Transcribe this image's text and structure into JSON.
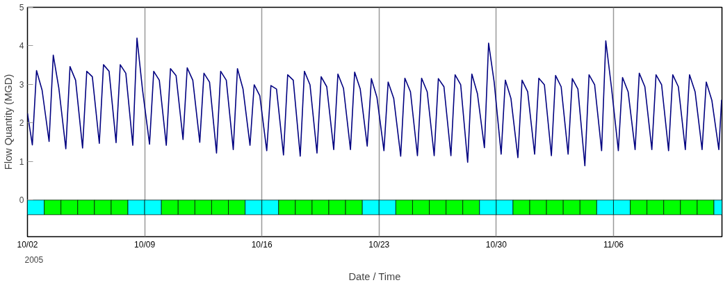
{
  "chart_data": {
    "type": "line",
    "xlabel": "Date / Time",
    "ylabel": "Flow Quantity (MGD)",
    "annotations": [
      "2005"
    ],
    "xlim": [
      "2005-10-02T00:00",
      "2005-11-12T11:30"
    ],
    "ylim": [
      -0.95,
      5
    ],
    "yticks": [
      0,
      1,
      2,
      3,
      4,
      5
    ],
    "xticks": [
      {
        "value": "2005-10-02",
        "label": "10/02"
      },
      {
        "value": "2005-10-09",
        "label": "10/09"
      },
      {
        "value": "2005-10-16",
        "label": "10/16"
      },
      {
        "value": "2005-10-23",
        "label": "10/23"
      },
      {
        "value": "2005-10-30",
        "label": "10/30"
      },
      {
        "value": "2005-11-06",
        "label": "11/06"
      }
    ],
    "grid": "x",
    "line_style": "solid",
    "marker": "none",
    "series": [
      {
        "color": "#000080",
        "x": [
          "2005-10-02T00:00",
          "2005-10-02T07:00",
          "2005-10-02T13:00",
          "2005-10-02T21:00",
          "2005-10-03T07:00",
          "2005-10-03T13:00",
          "2005-10-03T21:00",
          "2005-10-04T07:00",
          "2005-10-04T13:00",
          "2005-10-04T21:00",
          "2005-10-05T07:00",
          "2005-10-05T13:00",
          "2005-10-05T21:00",
          "2005-10-06T07:00",
          "2005-10-06T13:00",
          "2005-10-06T21:00",
          "2005-10-07T07:00",
          "2005-10-07T13:00",
          "2005-10-07T21:00",
          "2005-10-08T07:00",
          "2005-10-08T13:00",
          "2005-10-08T21:00",
          "2005-10-09T07:00",
          "2005-10-09T13:00",
          "2005-10-09T21:00",
          "2005-10-10T07:00",
          "2005-10-10T13:00",
          "2005-10-10T21:00",
          "2005-10-11T07:00",
          "2005-10-11T13:00",
          "2005-10-11T21:00",
          "2005-10-12T07:00",
          "2005-10-12T13:00",
          "2005-10-12T21:00",
          "2005-10-13T07:00",
          "2005-10-13T13:00",
          "2005-10-13T21:00",
          "2005-10-14T07:00",
          "2005-10-14T13:00",
          "2005-10-14T21:00",
          "2005-10-15T07:00",
          "2005-10-15T13:00",
          "2005-10-15T21:00",
          "2005-10-16T07:00",
          "2005-10-16T13:00",
          "2005-10-16T21:00",
          "2005-10-17T07:00",
          "2005-10-17T13:00",
          "2005-10-17T21:00",
          "2005-10-18T07:00",
          "2005-10-18T13:00",
          "2005-10-18T21:00",
          "2005-10-19T07:00",
          "2005-10-19T13:00",
          "2005-10-19T21:00",
          "2005-10-20T07:00",
          "2005-10-20T13:00",
          "2005-10-20T21:00",
          "2005-10-21T07:00",
          "2005-10-21T13:00",
          "2005-10-21T21:00",
          "2005-10-22T07:00",
          "2005-10-22T13:00",
          "2005-10-22T21:00",
          "2005-10-23T07:00",
          "2005-10-23T13:00",
          "2005-10-23T21:00",
          "2005-10-24T07:00",
          "2005-10-24T13:00",
          "2005-10-24T21:00",
          "2005-10-25T07:00",
          "2005-10-25T13:00",
          "2005-10-25T21:00",
          "2005-10-26T07:00",
          "2005-10-26T13:00",
          "2005-10-26T21:00",
          "2005-10-27T07:00",
          "2005-10-27T13:00",
          "2005-10-27T21:00",
          "2005-10-28T07:00",
          "2005-10-28T13:00",
          "2005-10-28T21:00",
          "2005-10-29T07:00",
          "2005-10-29T13:00",
          "2005-10-29T21:00",
          "2005-10-30T07:00",
          "2005-10-30T13:00",
          "2005-10-30T21:00",
          "2005-10-31T07:00",
          "2005-10-31T13:00",
          "2005-10-31T21:00",
          "2005-11-01T07:00",
          "2005-11-01T13:00",
          "2005-11-01T21:00",
          "2005-11-02T07:00",
          "2005-11-02T13:00",
          "2005-11-02T21:00",
          "2005-11-03T07:00",
          "2005-11-03T13:00",
          "2005-11-03T21:00",
          "2005-11-04T07:00",
          "2005-11-04T13:00",
          "2005-11-04T21:00",
          "2005-11-05T07:00",
          "2005-11-05T13:00",
          "2005-11-05T21:00",
          "2005-11-06T07:00",
          "2005-11-06T13:00",
          "2005-11-06T21:00",
          "2005-11-07T07:00",
          "2005-11-07T13:00",
          "2005-11-07T21:00",
          "2005-11-08T07:00",
          "2005-11-08T13:00",
          "2005-11-08T21:00",
          "2005-11-09T07:00",
          "2005-11-09T13:00",
          "2005-11-09T21:00",
          "2005-11-10T07:00",
          "2005-11-10T13:00",
          "2005-11-10T21:00",
          "2005-11-11T07:00",
          "2005-11-11T13:00",
          "2005-11-11T21:00",
          "2005-11-12T07:00",
          "2005-11-12T11:00"
        ],
        "values": [
          2.25,
          1.43,
          3.36,
          2.85,
          1.52,
          3.76,
          2.9,
          1.33,
          3.46,
          3.11,
          1.35,
          3.34,
          3.2,
          1.47,
          3.51,
          3.34,
          1.49,
          3.51,
          3.29,
          1.42,
          4.2,
          2.85,
          1.45,
          3.34,
          3.11,
          1.42,
          3.41,
          3.23,
          1.57,
          3.43,
          3.11,
          1.5,
          3.29,
          3.06,
          1.22,
          3.34,
          3.11,
          1.31,
          3.41,
          2.88,
          1.42,
          2.99,
          2.71,
          1.28,
          2.97,
          2.88,
          1.17,
          3.25,
          3.11,
          1.14,
          3.34,
          2.99,
          1.22,
          3.2,
          2.94,
          1.31,
          3.27,
          2.9,
          1.31,
          3.32,
          2.88,
          1.4,
          3.15,
          2.66,
          1.28,
          3.06,
          2.64,
          1.14,
          3.16,
          2.81,
          1.15,
          3.16,
          2.81,
          1.15,
          3.15,
          2.94,
          1.15,
          3.25,
          2.99,
          0.98,
          3.27,
          2.76,
          1.36,
          4.07,
          3.06,
          1.19,
          3.11,
          2.64,
          1.1,
          3.11,
          2.81,
          1.19,
          3.16,
          2.99,
          1.15,
          3.23,
          2.94,
          1.19,
          3.15,
          2.88,
          0.89,
          3.25,
          2.99,
          1.28,
          4.13,
          2.94,
          1.28,
          3.18,
          2.81,
          1.31,
          3.29,
          2.94,
          1.31,
          3.25,
          2.99,
          1.28,
          3.25,
          2.94,
          1.31,
          3.25,
          2.81,
          1.31,
          3.06,
          2.59,
          1.31,
          2.6
        ]
      }
    ],
    "bands": [
      {
        "axis": "x",
        "from": "2005-10-02",
        "to": "2005-10-03",
        "color": "#00ffff"
      },
      {
        "axis": "x",
        "from": "2005-10-03",
        "to": "2005-10-04",
        "color": "#00ff00"
      },
      {
        "axis": "x",
        "from": "2005-10-04",
        "to": "2005-10-05",
        "color": "#00ff00"
      },
      {
        "axis": "x",
        "from": "2005-10-05",
        "to": "2005-10-06",
        "color": "#00ff00"
      },
      {
        "axis": "x",
        "from": "2005-10-06",
        "to": "2005-10-07",
        "color": "#00ff00"
      },
      {
        "axis": "x",
        "from": "2005-10-07",
        "to": "2005-10-08",
        "color": "#00ff00"
      },
      {
        "axis": "x",
        "from": "2005-10-08",
        "to": "2005-10-09",
        "color": "#00ffff"
      },
      {
        "axis": "x",
        "from": "2005-10-09",
        "to": "2005-10-10",
        "color": "#00ffff"
      },
      {
        "axis": "x",
        "from": "2005-10-10",
        "to": "2005-10-11",
        "color": "#00ff00"
      },
      {
        "axis": "x",
        "from": "2005-10-11",
        "to": "2005-10-12",
        "color": "#00ff00"
      },
      {
        "axis": "x",
        "from": "2005-10-12",
        "to": "2005-10-13",
        "color": "#00ff00"
      },
      {
        "axis": "x",
        "from": "2005-10-13",
        "to": "2005-10-14",
        "color": "#00ff00"
      },
      {
        "axis": "x",
        "from": "2005-10-14",
        "to": "2005-10-15",
        "color": "#00ff00"
      },
      {
        "axis": "x",
        "from": "2005-10-15",
        "to": "2005-10-16",
        "color": "#00ffff"
      },
      {
        "axis": "x",
        "from": "2005-10-16",
        "to": "2005-10-17",
        "color": "#00ffff"
      },
      {
        "axis": "x",
        "from": "2005-10-17",
        "to": "2005-10-18",
        "color": "#00ff00"
      },
      {
        "axis": "x",
        "from": "2005-10-18",
        "to": "2005-10-19",
        "color": "#00ff00"
      },
      {
        "axis": "x",
        "from": "2005-10-19",
        "to": "2005-10-20",
        "color": "#00ff00"
      },
      {
        "axis": "x",
        "from": "2005-10-20",
        "to": "2005-10-21",
        "color": "#00ff00"
      },
      {
        "axis": "x",
        "from": "2005-10-21",
        "to": "2005-10-22",
        "color": "#00ff00"
      },
      {
        "axis": "x",
        "from": "2005-10-22",
        "to": "2005-10-23",
        "color": "#00ffff"
      },
      {
        "axis": "x",
        "from": "2005-10-23",
        "to": "2005-10-24",
        "color": "#00ffff"
      },
      {
        "axis": "x",
        "from": "2005-10-24",
        "to": "2005-10-25",
        "color": "#00ff00"
      },
      {
        "axis": "x",
        "from": "2005-10-25",
        "to": "2005-10-26",
        "color": "#00ff00"
      },
      {
        "axis": "x",
        "from": "2005-10-26",
        "to": "2005-10-27",
        "color": "#00ff00"
      },
      {
        "axis": "x",
        "from": "2005-10-27",
        "to": "2005-10-28",
        "color": "#00ff00"
      },
      {
        "axis": "x",
        "from": "2005-10-28",
        "to": "2005-10-29",
        "color": "#00ff00"
      },
      {
        "axis": "x",
        "from": "2005-10-29",
        "to": "2005-10-30",
        "color": "#00ffff"
      },
      {
        "axis": "x",
        "from": "2005-10-30",
        "to": "2005-10-31",
        "color": "#00ffff"
      },
      {
        "axis": "x",
        "from": "2005-10-31",
        "to": "2005-11-01",
        "color": "#00ff00"
      },
      {
        "axis": "x",
        "from": "2005-11-01",
        "to": "2005-11-02",
        "color": "#00ff00"
      },
      {
        "axis": "x",
        "from": "2005-11-02",
        "to": "2005-11-03",
        "color": "#00ff00"
      },
      {
        "axis": "x",
        "from": "2005-11-03",
        "to": "2005-11-04",
        "color": "#00ff00"
      },
      {
        "axis": "x",
        "from": "2005-11-04",
        "to": "2005-11-05",
        "color": "#00ff00"
      },
      {
        "axis": "x",
        "from": "2005-11-05",
        "to": "2005-11-06",
        "color": "#00ffff"
      },
      {
        "axis": "x",
        "from": "2005-11-06",
        "to": "2005-11-07",
        "color": "#00ffff"
      },
      {
        "axis": "x",
        "from": "2005-11-07",
        "to": "2005-11-08",
        "color": "#00ff00"
      },
      {
        "axis": "x",
        "from": "2005-11-08",
        "to": "2005-11-09",
        "color": "#00ff00"
      },
      {
        "axis": "x",
        "from": "2005-11-09",
        "to": "2005-11-10",
        "color": "#00ff00"
      },
      {
        "axis": "x",
        "from": "2005-11-10",
        "to": "2005-11-11",
        "color": "#00ff00"
      },
      {
        "axis": "x",
        "from": "2005-11-11",
        "to": "2005-11-12",
        "color": "#00ff00"
      },
      {
        "axis": "x",
        "from": "2005-11-12",
        "to": "2005-11-12T11:30",
        "color": "#00ffff"
      }
    ]
  }
}
